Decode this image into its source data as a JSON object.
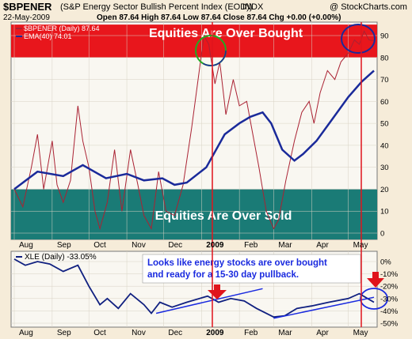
{
  "header": {
    "symbol": "$BPENER",
    "description": "(S&P Energy Sector Bullish Percent Index (EOD))",
    "exchange": "INDX",
    "source": "@ StockCharts.com",
    "date": "22-May-2009",
    "ohlc": "Open 87.64  High 87.64  Low 87.64  Close 87.64  Chg +0.00 (+0.00%)"
  },
  "main_panel": {
    "legend": {
      "series1": "$BPENER (Daily) 87.64",
      "series2": "EMA(40) 74.01",
      "series1_color": "#aa2233",
      "series2_color": "#1a2a9a"
    },
    "overbought_label": "Equities Are Over Bought",
    "oversold_label": "Equities Are Over Sold",
    "overbought_color": "#e8161c",
    "oversold_color": "#1a7b76",
    "y_ticks": [
      "90",
      "80",
      "70",
      "60",
      "50",
      "40",
      "30",
      "20",
      "10",
      "0"
    ]
  },
  "sub_panel": {
    "legend": "XLE (Daily) -33.05%",
    "annotation_line1": "Looks like energy stocks are over bought",
    "annotation_line2": "and ready for a 15-30 day pullback.",
    "y_ticks": [
      "0%",
      "-10%",
      "-20%",
      "-30%",
      "-40%",
      "-50%"
    ],
    "line_color": "#102080"
  },
  "x_axis": {
    "labels": [
      "Aug",
      "Sep",
      "Oct",
      "Nov",
      "Dec",
      "2009",
      "Feb",
      "Mar",
      "Apr",
      "May"
    ]
  },
  "chart_data": [
    {
      "type": "line",
      "title": "$BPENER (S&P Energy Sector Bullish Percent Index (EOD))",
      "ylim": [
        0,
        95
      ],
      "x_range": [
        "2008-08-01",
        "2009-05-22"
      ],
      "series": [
        {
          "name": "$BPENER (Daily) 87.64",
          "points": [
            [
              "2008-08-01",
              20
            ],
            [
              "2008-08-08",
              12
            ],
            [
              "2008-08-15",
              30
            ],
            [
              "2008-08-20",
              45
            ],
            [
              "2008-08-25",
              20
            ],
            [
              "2008-09-01",
              42
            ],
            [
              "2008-09-05",
              22
            ],
            [
              "2008-09-10",
              14
            ],
            [
              "2008-09-16",
              24
            ],
            [
              "2008-09-22",
              58
            ],
            [
              "2008-09-26",
              42
            ],
            [
              "2008-10-01",
              30
            ],
            [
              "2008-10-06",
              10
            ],
            [
              "2008-10-10",
              2
            ],
            [
              "2008-10-16",
              14
            ],
            [
              "2008-10-22",
              38
            ],
            [
              "2008-10-28",
              10
            ],
            [
              "2008-11-04",
              38
            ],
            [
              "2008-11-10",
              22
            ],
            [
              "2008-11-15",
              8
            ],
            [
              "2008-11-21",
              2
            ],
            [
              "2008-11-27",
              28
            ],
            [
              "2008-12-03",
              10
            ],
            [
              "2008-12-10",
              8
            ],
            [
              "2008-12-17",
              22
            ],
            [
              "2008-12-24",
              48
            ],
            [
              "2009-01-03",
              90
            ],
            [
              "2009-01-07",
              86
            ],
            [
              "2009-01-12",
              68
            ],
            [
              "2009-01-16",
              78
            ],
            [
              "2009-01-21",
              54
            ],
            [
              "2009-01-27",
              70
            ],
            [
              "2009-02-01",
              58
            ],
            [
              "2009-02-07",
              60
            ],
            [
              "2009-02-12",
              45
            ],
            [
              "2009-02-17",
              30
            ],
            [
              "2009-02-23",
              10
            ],
            [
              "2009-03-01",
              2
            ],
            [
              "2009-03-05",
              6
            ],
            [
              "2009-03-11",
              24
            ],
            [
              "2009-03-18",
              42
            ],
            [
              "2009-03-24",
              55
            ],
            [
              "2009-03-30",
              60
            ],
            [
              "2009-04-03",
              50
            ],
            [
              "2009-04-08",
              64
            ],
            [
              "2009-04-14",
              74
            ],
            [
              "2009-04-20",
              70
            ],
            [
              "2009-04-25",
              78
            ],
            [
              "2009-05-01",
              82
            ],
            [
              "2009-05-06",
              88
            ],
            [
              "2009-05-10",
              86
            ],
            [
              "2009-05-14",
              92
            ],
            [
              "2009-05-18",
              88
            ],
            [
              "2009-05-22",
              87.64
            ]
          ]
        },
        {
          "name": "EMA(40) 74.01",
          "points": [
            [
              "2008-08-01",
              20
            ],
            [
              "2008-08-20",
              28
            ],
            [
              "2008-09-10",
              26
            ],
            [
              "2008-09-26",
              31
            ],
            [
              "2008-10-15",
              25
            ],
            [
              "2008-11-01",
              27
            ],
            [
              "2008-11-15",
              24
            ],
            [
              "2008-11-30",
              25
            ],
            [
              "2008-12-10",
              22
            ],
            [
              "2008-12-20",
              23
            ],
            [
              "2009-01-05",
              30
            ],
            [
              "2009-01-20",
              45
            ],
            [
              "2009-02-01",
              50
            ],
            [
              "2009-02-10",
              53
            ],
            [
              "2009-02-20",
              55
            ],
            [
              "2009-02-27",
              50
            ],
            [
              "2009-03-08",
              38
            ],
            [
              "2009-03-18",
              33
            ],
            [
              "2009-03-25",
              36
            ],
            [
              "2009-04-05",
              42
            ],
            [
              "2009-04-18",
              52
            ],
            [
              "2009-05-01",
              62
            ],
            [
              "2009-05-12",
              69
            ],
            [
              "2009-05-22",
              74.01
            ]
          ]
        }
      ],
      "bands": [
        {
          "label": "Equities Are Over Bought",
          "range": [
            80,
            95
          ]
        },
        {
          "label": "Equities Are Over Sold",
          "range": [
            0,
            20
          ]
        }
      ]
    },
    {
      "type": "line",
      "title": "XLE (Daily) -33.05%",
      "ylim": [
        -50,
        5
      ],
      "series": [
        {
          "name": "XLE (Daily) -33.05%",
          "points": [
            [
              "2008-08-01",
              2
            ],
            [
              "2008-08-10",
              -3
            ],
            [
              "2008-08-20",
              0
            ],
            [
              "2008-08-30",
              -2
            ],
            [
              "2008-09-10",
              -8
            ],
            [
              "2008-09-22",
              -3
            ],
            [
              "2008-10-01",
              -20
            ],
            [
              "2008-10-10",
              -35
            ],
            [
              "2008-10-16",
              -30
            ],
            [
              "2008-10-25",
              -38
            ],
            [
              "2008-11-04",
              -26
            ],
            [
              "2008-11-15",
              -35
            ],
            [
              "2008-11-21",
              -42
            ],
            [
              "2008-11-28",
              -33
            ],
            [
              "2008-12-08",
              -37
            ],
            [
              "2008-12-20",
              -33
            ],
            [
              "2009-01-06",
              -28
            ],
            [
              "2009-01-15",
              -33
            ],
            [
              "2009-01-25",
              -30
            ],
            [
              "2009-02-05",
              -32
            ],
            [
              "2009-02-15",
              -38
            ],
            [
              "2009-03-01",
              -45
            ],
            [
              "2009-03-10",
              -44
            ],
            [
              "2009-03-20",
              -38
            ],
            [
              "2009-04-01",
              -36
            ],
            [
              "2009-04-15",
              -33
            ],
            [
              "2009-05-01",
              -30
            ],
            [
              "2009-05-10",
              -26
            ],
            [
              "2009-05-15",
              -29
            ],
            [
              "2009-05-22",
              -33
            ]
          ]
        },
        {
          "name": "trendline-1",
          "points": [
            [
              "2008-11-25",
              -42
            ],
            [
              "2009-02-20",
              -22
            ]
          ]
        },
        {
          "name": "trendline-2",
          "points": [
            [
              "2009-03-01",
              -46
            ],
            [
              "2009-05-22",
              -29
            ]
          ]
        }
      ]
    }
  ]
}
